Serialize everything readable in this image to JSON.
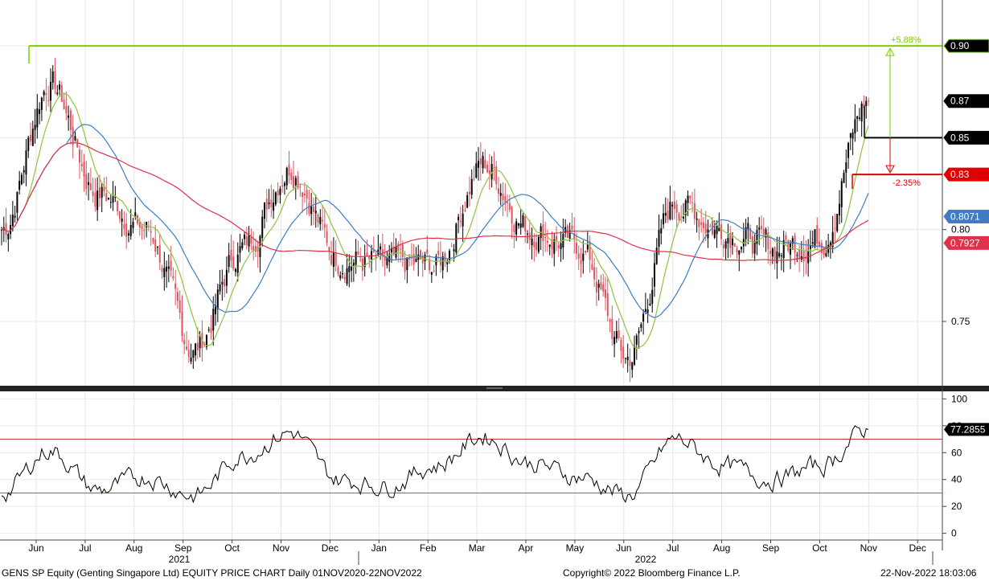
{
  "footer": {
    "left": "GENS SP Equity (Genting Singapore Ltd) EQUITY PRICE CHART  Daily 01NOV2020-22NOV2022",
    "center": "Copyright© 2022 Bloomberg Finance L.P.",
    "right": "22-Nov-2022 18:03:06"
  },
  "colors": {
    "up_candle": "#000000",
    "down_candle": "#e05561",
    "ma_short": "#8dc63f",
    "ma_mid": "#3f7cc4",
    "ma_long": "#e0314b",
    "resistance_line": "#7dcf00",
    "support_line": "#e00000",
    "last_line": "#000000",
    "rsi_line": "#000000",
    "rsi_over": "#c0392b",
    "rsi_under": "#27a527"
  },
  "chart_data": [
    {
      "type": "candlestick",
      "title": "",
      "xlabel": "",
      "ylabel": "",
      "x_ticks": [
        "Jun",
        "Jul",
        "Aug",
        "Sep",
        "Oct",
        "Nov",
        "Dec",
        "Jan",
        "Feb",
        "Mar",
        "Apr",
        "May",
        "Jun",
        "Jul",
        "Aug",
        "Sep",
        "Oct",
        "Nov",
        "Dec"
      ],
      "year_labels": [
        "2021",
        "2022"
      ],
      "y_ticks": [
        "0.75",
        "0.80"
      ],
      "ylim": [
        0.715,
        0.925
      ],
      "grid": true,
      "ohlc_anchor_closes": [
        {
          "month": "May 2021",
          "close": 0.8
        },
        {
          "month": "Jun 2021",
          "close": 0.88
        },
        {
          "month": "Jul 2021",
          "close": 0.82
        },
        {
          "month": "Aug 2021",
          "close": 0.8
        },
        {
          "month": "Sep 2021",
          "close": 0.735
        },
        {
          "month": "Oct 2021",
          "close": 0.79
        },
        {
          "month": "Nov 2021",
          "close": 0.835
        },
        {
          "month": "Dec 2021",
          "close": 0.785
        },
        {
          "month": "Jan 2022",
          "close": 0.78
        },
        {
          "month": "Feb 2022",
          "close": 0.78
        },
        {
          "month": "Mar 2022",
          "close": 0.835
        },
        {
          "month": "Apr 2022",
          "close": 0.8
        },
        {
          "month": "May 2022",
          "close": 0.79
        },
        {
          "month": "Jun 2022",
          "close": 0.73
        },
        {
          "month": "Jul 2022",
          "close": 0.815
        },
        {
          "month": "Aug 2022",
          "close": 0.8
        },
        {
          "month": "Sep 2022",
          "close": 0.79
        },
        {
          "month": "Oct 2022",
          "close": 0.795
        },
        {
          "month": "Nov 2022",
          "close": 0.87
        }
      ],
      "levels": [
        {
          "label": "0.90",
          "value": 0.9,
          "annotation": "+5.88%"
        },
        {
          "label": "0.87",
          "value": 0.87
        },
        {
          "label": "0.85",
          "value": 0.85
        },
        {
          "label": "0.83",
          "value": 0.83,
          "annotation": "-2.35%"
        },
        {
          "label": "0.8071",
          "value": 0.8071
        },
        {
          "label": "0.7927",
          "value": 0.7927
        }
      ]
    },
    {
      "type": "line",
      "title": "",
      "y_ticks": [
        "100",
        "80",
        "60",
        "40",
        "20",
        "0"
      ],
      "ylim": [
        -5,
        105
      ],
      "bands": [
        70,
        30
      ],
      "last_value_label": "77.2855",
      "last_value": 77.2855,
      "anchor_values": [
        {
          "month": "May 2021",
          "value": 30
        },
        {
          "month": "Jun 2021",
          "value": 62
        },
        {
          "month": "Jul 2021",
          "value": 32
        },
        {
          "month": "Aug 2021",
          "value": 42
        },
        {
          "month": "Sep 2021",
          "value": 28
        },
        {
          "month": "Oct 2021",
          "value": 58
        },
        {
          "month": "Nov 2021",
          "value": 75
        },
        {
          "month": "Dec 2021",
          "value": 40
        },
        {
          "month": "Jan 2022",
          "value": 35
        },
        {
          "month": "Feb 2022",
          "value": 50
        },
        {
          "month": "Mar 2022",
          "value": 72
        },
        {
          "month": "Apr 2022",
          "value": 52
        },
        {
          "month": "May 2022",
          "value": 42
        },
        {
          "month": "Jun 2022",
          "value": 28
        },
        {
          "month": "Jul 2022",
          "value": 70
        },
        {
          "month": "Aug 2022",
          "value": 50
        },
        {
          "month": "Sep 2022",
          "value": 40
        },
        {
          "month": "Oct 2022",
          "value": 50
        },
        {
          "month": "Nov 2022",
          "value": 77.2855
        }
      ]
    }
  ]
}
